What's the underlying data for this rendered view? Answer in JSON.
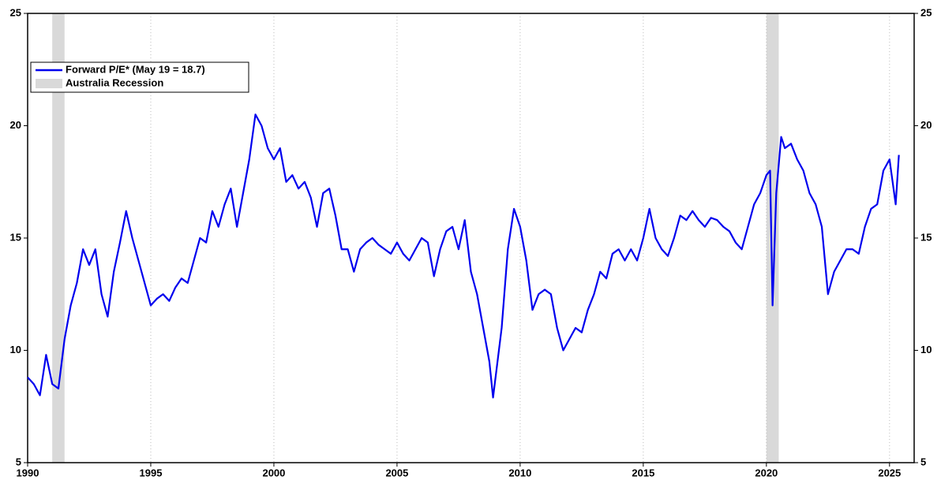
{
  "chart_data": {
    "type": "line",
    "x": [
      1990.0,
      1990.25,
      1990.5,
      1990.75,
      1991.0,
      1991.25,
      1991.5,
      1991.75,
      1992.0,
      1992.25,
      1992.5,
      1992.75,
      1993.0,
      1993.25,
      1993.5,
      1993.75,
      1994.0,
      1994.25,
      1994.5,
      1994.75,
      1995.0,
      1995.25,
      1995.5,
      1995.75,
      1996.0,
      1996.25,
      1996.5,
      1996.75,
      1997.0,
      1997.25,
      1997.5,
      1997.75,
      1998.0,
      1998.25,
      1998.5,
      1998.75,
      1999.0,
      1999.25,
      1999.5,
      1999.75,
      2000.0,
      2000.25,
      2000.5,
      2000.75,
      2001.0,
      2001.25,
      2001.5,
      2001.75,
      2002.0,
      2002.25,
      2002.5,
      2002.75,
      2003.0,
      2003.25,
      2003.5,
      2003.75,
      2004.0,
      2004.25,
      2004.5,
      2004.75,
      2005.0,
      2005.25,
      2005.5,
      2005.75,
      2006.0,
      2006.25,
      2006.5,
      2006.75,
      2007.0,
      2007.25,
      2007.5,
      2007.75,
      2008.0,
      2008.25,
      2008.5,
      2008.75,
      2008.9,
      2009.25,
      2009.5,
      2009.75,
      2010.0,
      2010.25,
      2010.5,
      2010.75,
      2011.0,
      2011.25,
      2011.5,
      2011.75,
      2012.0,
      2012.25,
      2012.5,
      2012.75,
      2013.0,
      2013.25,
      2013.5,
      2013.75,
      2014.0,
      2014.25,
      2014.5,
      2014.75,
      2015.0,
      2015.25,
      2015.5,
      2015.75,
      2016.0,
      2016.25,
      2016.5,
      2016.75,
      2017.0,
      2017.25,
      2017.5,
      2017.75,
      2018.0,
      2018.25,
      2018.5,
      2018.75,
      2019.0,
      2019.25,
      2019.5,
      2019.75,
      2020.0,
      2020.15,
      2020.25,
      2020.4,
      2020.6,
      2020.75,
      2021.0,
      2021.25,
      2021.5,
      2021.75,
      2022.0,
      2022.25,
      2022.5,
      2022.75,
      2023.0,
      2023.25,
      2023.5,
      2023.75,
      2024.0,
      2024.25,
      2024.5,
      2024.75,
      2025.0,
      2025.25,
      2025.38
    ],
    "series": [
      {
        "name": "Forward P/E* (May 19 = 18.7)",
        "color": "#0000ee",
        "values": [
          8.8,
          8.5,
          8.0,
          9.8,
          8.5,
          8.3,
          10.5,
          12.0,
          13.0,
          14.5,
          13.8,
          14.5,
          12.5,
          11.5,
          13.5,
          14.8,
          16.2,
          15.0,
          14.0,
          13.0,
          12.0,
          12.3,
          12.5,
          12.2,
          12.8,
          13.2,
          13.0,
          14.0,
          15.0,
          14.8,
          16.2,
          15.5,
          16.5,
          17.2,
          15.5,
          17.0,
          18.5,
          20.5,
          20.0,
          19.0,
          18.5,
          19.0,
          17.5,
          17.8,
          17.2,
          17.5,
          16.8,
          15.5,
          17.0,
          17.2,
          16.0,
          14.5,
          14.5,
          13.5,
          14.5,
          14.8,
          15.0,
          14.7,
          14.5,
          14.3,
          14.8,
          14.3,
          14.0,
          14.5,
          15.0,
          14.8,
          13.3,
          14.5,
          15.3,
          15.5,
          14.5,
          15.8,
          13.5,
          12.5,
          11.0,
          9.5,
          7.9,
          11.0,
          14.5,
          16.3,
          15.5,
          14.0,
          11.8,
          12.5,
          12.7,
          12.5,
          11.0,
          10.0,
          10.5,
          11.0,
          10.8,
          11.8,
          12.5,
          13.5,
          13.2,
          14.3,
          14.5,
          14.0,
          14.5,
          14.0,
          15.0,
          16.3,
          15.0,
          14.5,
          14.2,
          15.0,
          16.0,
          15.8,
          16.2,
          15.8,
          15.5,
          15.9,
          15.8,
          15.5,
          15.3,
          14.8,
          14.5,
          15.5,
          16.5,
          17.0,
          17.8,
          18.0,
          12.0,
          17.0,
          19.5,
          19.0,
          19.2,
          18.5,
          18.0,
          17.0,
          16.5,
          15.5,
          12.5,
          13.5,
          14.0,
          14.5,
          14.5,
          14.3,
          15.5,
          16.3,
          16.5,
          18.0,
          18.5,
          16.5,
          18.7
        ]
      }
    ],
    "shading": {
      "name": "Australia Recession",
      "color": "#d9d9d9",
      "ranges": [
        [
          1991.0,
          1991.5
        ],
        [
          2020.0,
          2020.5
        ]
      ]
    },
    "xlim": [
      1990,
      2026
    ],
    "xticks": [
      1990,
      1995,
      2000,
      2005,
      2010,
      2015,
      2020,
      2025
    ],
    "ylim": [
      5,
      25
    ],
    "yticks": [
      5,
      10,
      15,
      20,
      25
    ],
    "grid": true,
    "legend": "top-left"
  }
}
